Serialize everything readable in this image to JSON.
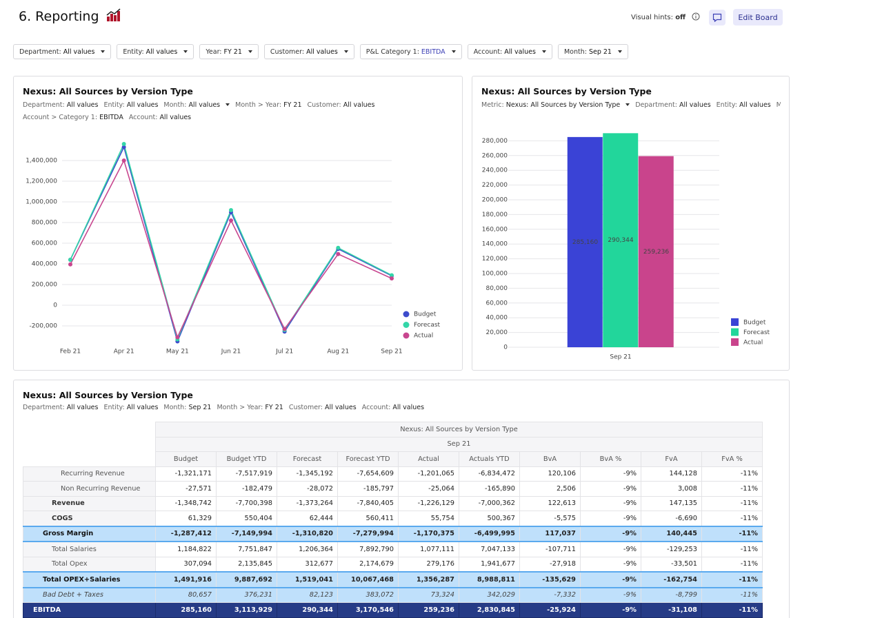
{
  "header": {
    "title": "6. Reporting",
    "hints_label": "Visual hints:",
    "hints_value": "off",
    "edit_button": "Edit Board"
  },
  "filters": [
    {
      "label": "Department:",
      "value": "All values"
    },
    {
      "label": "Entity:",
      "value": "All values"
    },
    {
      "label": "Year:",
      "value": "FY 21"
    },
    {
      "label": "Customer:",
      "value": "All values"
    },
    {
      "label": "P&L Category 1:",
      "value": "EBITDA"
    },
    {
      "label": "Account:",
      "value": "All values"
    },
    {
      "label": "Month:",
      "value": "Sep 21"
    }
  ],
  "chart_data": [
    {
      "type": "line",
      "title": "Nexus: All Sources by Version Type",
      "filters": [
        [
          {
            "label": "Department:",
            "value": "All values"
          },
          {
            "label": "Entity:",
            "value": "All values"
          },
          {
            "label": "Month:",
            "value": "All values",
            "dropdown": true
          },
          {
            "label": "Month > Year:",
            "value": "FY 21"
          },
          {
            "label": "Customer:",
            "value": "All values"
          }
        ],
        [
          {
            "label": "Account > Category 1:",
            "value": "EBITDA"
          },
          {
            "label": "Account:",
            "value": "All values"
          }
        ]
      ],
      "categories": [
        "Feb 21",
        "Apr 21",
        "May 21",
        "Jun 21",
        "Jul 21",
        "Aug 21",
        "Sep 21"
      ],
      "series": [
        {
          "name": "Budget",
          "color": "#3d4ccc",
          "values": [
            440000,
            1530000,
            -350000,
            900000,
            -255000,
            545000,
            285160
          ]
        },
        {
          "name": "Forecast",
          "color": "#34d6a8",
          "values": [
            440000,
            1560000,
            -330000,
            920000,
            -240000,
            555000,
            290344
          ]
        },
        {
          "name": "Actual",
          "color": "#c8468f",
          "values": [
            395000,
            1400000,
            -310000,
            820000,
            -230000,
            495000,
            259236
          ]
        }
      ],
      "ylim": [
        -400000,
        1600000
      ],
      "yticks": [
        {
          "value": -200000,
          "label": "-200,000"
        },
        0,
        {
          "value": 200000,
          "label": "200,000"
        },
        {
          "value": 400000,
          "label": "400,000"
        },
        {
          "value": 600000,
          "label": "600,000"
        },
        {
          "value": 800000,
          "label": "800,000"
        },
        {
          "value": 1000000,
          "label": "1,000,000"
        },
        {
          "value": 1200000,
          "label": "1,200,000"
        },
        {
          "value": 1400000,
          "label": "1,400,000"
        }
      ],
      "grid": true,
      "legend": "bottom-right"
    },
    {
      "type": "bar",
      "title": "Nexus: All Sources by Version Type",
      "filters": [
        [
          {
            "label": "Metric:",
            "value": "Nexus: All Sources by Version Type",
            "dropdown": true
          },
          {
            "label": "Department:",
            "value": "All values"
          },
          {
            "label": "Entity:",
            "value": "All values"
          },
          {
            "label": "Mon"
          }
        ]
      ],
      "categories": [
        "Sep 21"
      ],
      "series": [
        {
          "name": "Budget",
          "color": "#3a43d6",
          "values": [
            285160
          ],
          "value_labels": [
            "285,160"
          ]
        },
        {
          "name": "Forecast",
          "color": "#22d69b",
          "values": [
            290344
          ],
          "value_labels": [
            "290,344"
          ]
        },
        {
          "name": "Actual",
          "color": "#c9448c",
          "values": [
            259236
          ],
          "value_labels": [
            "259,236"
          ]
        }
      ],
      "ylim": [
        0,
        300000
      ],
      "yticks": [
        0,
        {
          "value": 20000,
          "label": "20,000"
        },
        {
          "value": 40000,
          "label": "40,000"
        },
        {
          "value": 60000,
          "label": "60,000"
        },
        {
          "value": 80000,
          "label": "80,000"
        },
        {
          "value": 100000,
          "label": "100,000"
        },
        {
          "value": 120000,
          "label": "120,000"
        },
        {
          "value": 140000,
          "label": "140,000"
        },
        {
          "value": 160000,
          "label": "160,000"
        },
        {
          "value": 180000,
          "label": "180,000"
        },
        {
          "value": 200000,
          "label": "200,000"
        },
        {
          "value": 220000,
          "label": "220,000"
        },
        {
          "value": 240000,
          "label": "240,000"
        },
        {
          "value": 260000,
          "label": "260,000"
        },
        {
          "value": 280000,
          "label": "280,000"
        }
      ],
      "grid": true,
      "legend": "bottom-right"
    }
  ],
  "table": {
    "title": "Nexus: All Sources by Version Type",
    "filters": [
      {
        "label": "Department:",
        "value": "All values"
      },
      {
        "label": "Entity:",
        "value": "All values"
      },
      {
        "label": "Month:",
        "value": "Sep 21"
      },
      {
        "label": "Month > Year:",
        "value": "FY 21"
      },
      {
        "label": "Customer:",
        "value": "All values"
      },
      {
        "label": "Account:",
        "value": "All values"
      }
    ],
    "group_header": "Nexus: All Sources by Version Type",
    "period": "Sep 21",
    "columns": [
      "Budget",
      "Budget YTD",
      "Forecast",
      "Forecast YTD",
      "Actual",
      "Actuals YTD",
      "BvA",
      "BvA %",
      "FvA",
      "FvA %"
    ],
    "rows": [
      [
        "Recurring Revenue",
        "-1,321,171",
        "-7,517,919",
        "-1,345,192",
        "-7,654,609",
        "-1,201,065",
        "-6,834,472",
        "120,106",
        "-9%",
        "144,128",
        "-11%"
      ],
      [
        "Non Recurring Revenue",
        "-27,571",
        "-182,479",
        "-28,072",
        "-185,797",
        "-25,064",
        "-165,890",
        "2,506",
        "-9%",
        "3,008",
        "-11%"
      ],
      [
        "Revenue",
        "-1,348,742",
        "-7,700,398",
        "-1,373,264",
        "-7,840,405",
        "-1,226,129",
        "-7,000,362",
        "122,613",
        "-9%",
        "147,135",
        "-11%"
      ],
      [
        "COGS",
        "61,329",
        "550,404",
        "62,444",
        "560,411",
        "55,754",
        "500,367",
        "-5,575",
        "-9%",
        "-6,690",
        "-11%"
      ],
      [
        "Gross Margin",
        "-1,287,412",
        "-7,149,994",
        "-1,310,820",
        "-7,279,994",
        "-1,170,375",
        "-6,499,995",
        "117,037",
        "-9%",
        "140,445",
        "-11%"
      ],
      [
        "Total Salaries",
        "1,184,822",
        "7,751,847",
        "1,206,364",
        "7,892,790",
        "1,077,111",
        "7,047,133",
        "-107,711",
        "-9%",
        "-129,253",
        "-11%"
      ],
      [
        "Total Opex",
        "307,094",
        "2,135,845",
        "312,677",
        "2,174,679",
        "279,176",
        "1,941,677",
        "-27,918",
        "-9%",
        "-33,501",
        "-11%"
      ],
      [
        "Total OPEX+Salaries",
        "1,491,916",
        "9,887,692",
        "1,519,041",
        "10,067,468",
        "1,356,287",
        "8,988,811",
        "-135,629",
        "-9%",
        "-162,754",
        "-11%"
      ],
      [
        "Bad Debt + Taxes",
        "80,657",
        "376,231",
        "82,123",
        "383,072",
        "73,324",
        "342,029",
        "-7,332",
        "-9%",
        "-8,799",
        "-11%"
      ],
      [
        "EBITDA",
        "285,160",
        "3,113,929",
        "290,344",
        "3,170,546",
        "259,236",
        "2,830,845",
        "-25,924",
        "-9%",
        "-31,108",
        "-11%"
      ]
    ]
  }
}
